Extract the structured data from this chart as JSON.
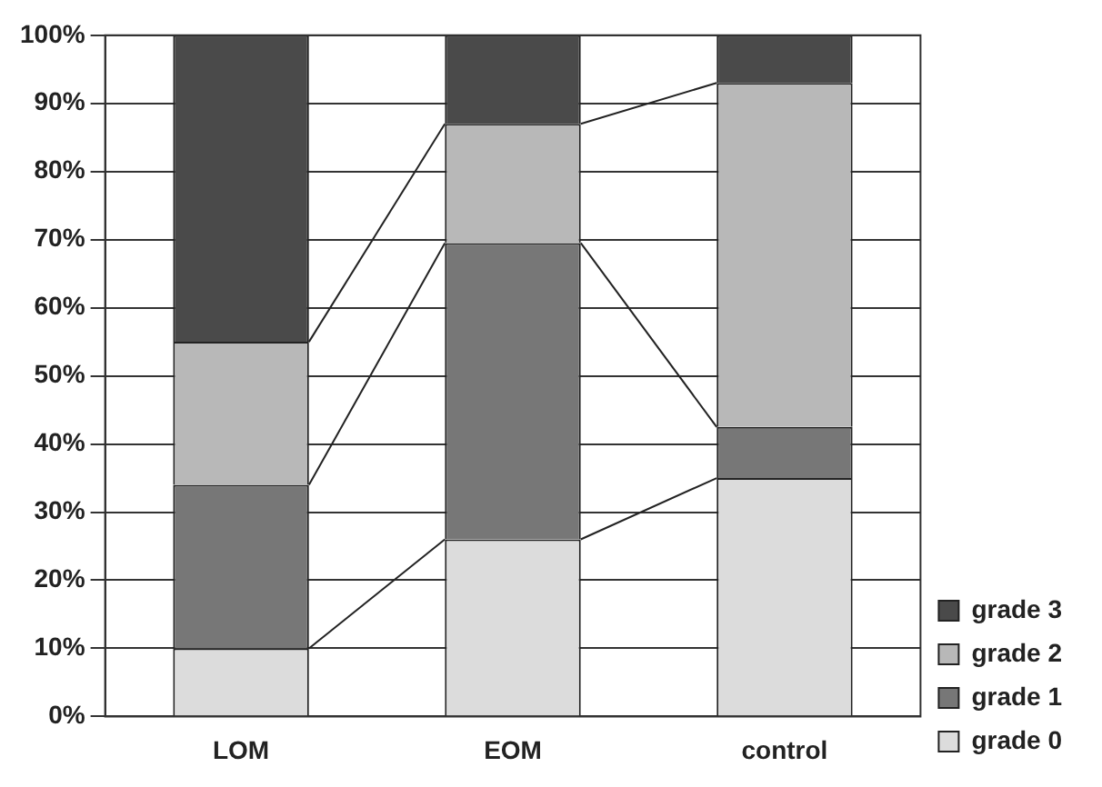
{
  "chart_data": {
    "type": "bar",
    "stacked": true,
    "categories": [
      "LOM",
      "EOM",
      "control"
    ],
    "series": [
      {
        "name": "grade 0",
        "color": "#dcdcdc",
        "values": [
          10,
          26,
          35
        ]
      },
      {
        "name": "grade 1",
        "color": "#777777",
        "values": [
          24,
          43.5,
          7.5
        ]
      },
      {
        "name": "grade 2",
        "color": "#b8b8b8",
        "values": [
          21,
          17.5,
          50.5
        ]
      },
      {
        "name": "grade 3",
        "color": "#4a4a4a",
        "values": [
          45,
          13,
          7
        ]
      }
    ],
    "ylim": [
      0,
      100
    ],
    "yticks": [
      {
        "value": 0,
        "label": "0%"
      },
      {
        "value": 10,
        "label": "10%"
      },
      {
        "value": 20,
        "label": "20%"
      },
      {
        "value": 30,
        "label": "30%"
      },
      {
        "value": 40,
        "label": "40%"
      },
      {
        "value": 50,
        "label": "50%"
      },
      {
        "value": 60,
        "label": "60%"
      },
      {
        "value": 70,
        "label": "70%"
      },
      {
        "value": 80,
        "label": "80%"
      },
      {
        "value": 90,
        "label": "90%"
      },
      {
        "value": 100,
        "label": "100%"
      }
    ],
    "grid": "y",
    "legend": "bottom right"
  }
}
